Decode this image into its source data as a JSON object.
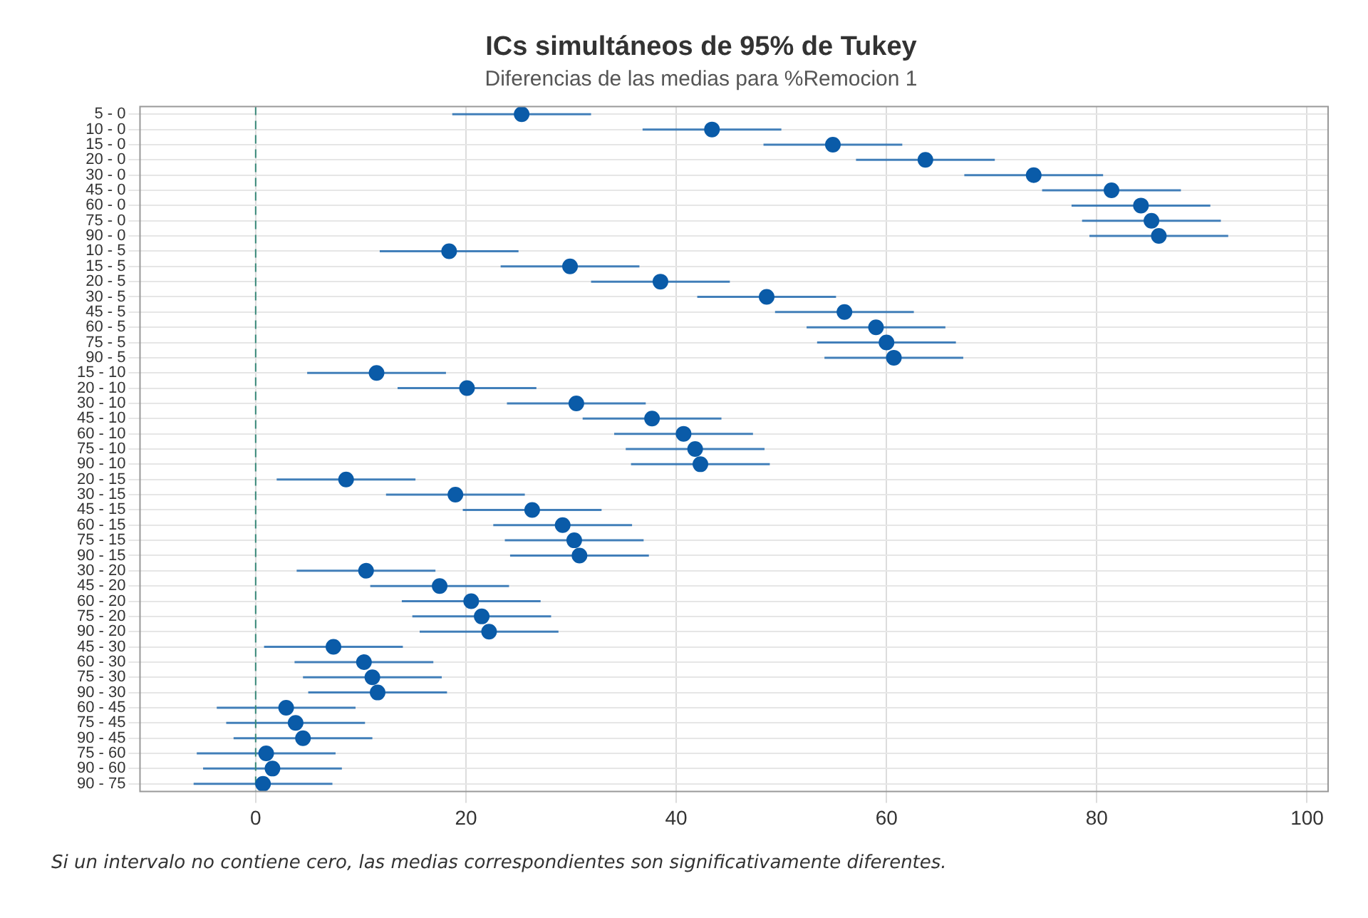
{
  "chart_data": {
    "type": "scatter",
    "title": "ICs simultáneos de 95% de Tukey",
    "subtitle": "Diferencias de las medias para %Remocion 1",
    "categories": [
      "5 - 0",
      "10 - 0",
      "15 - 0",
      "20 - 0",
      "30 - 0",
      "45 - 0",
      "60 - 0",
      "75 - 0",
      "90 - 0",
      "10 - 5",
      "15 - 5",
      "20 - 5",
      "30 - 5",
      "45 - 5",
      "60 - 5",
      "75 - 5",
      "90 - 5",
      "15 - 10",
      "20 - 10",
      "30 - 10",
      "45 - 10",
      "60 - 10",
      "75 - 10",
      "90 - 10",
      "20 - 15",
      "30 - 15",
      "45 - 15",
      "60 - 15",
      "75 - 15",
      "90 - 15",
      "30 - 20",
      "45 - 20",
      "60 - 20",
      "75 - 20",
      "90 - 20",
      "45 - 30",
      "60 - 30",
      "75 - 30",
      "90 - 30",
      "60 - 45",
      "75 - 45",
      "90 - 45",
      "75 - 60",
      "90 - 60",
      "90 - 75"
    ],
    "orientation": "horizontal",
    "series": [
      {
        "color": "#0a5ba8",
        "values": [
          25.3,
          43.4,
          54.9,
          63.7,
          74.0,
          81.4,
          84.2,
          85.2,
          85.9,
          18.4,
          29.9,
          38.5,
          48.6,
          56.0,
          59.0,
          60.0,
          60.7,
          11.5,
          20.1,
          30.5,
          37.7,
          40.7,
          41.8,
          42.3,
          8.6,
          19.0,
          26.3,
          29.2,
          30.3,
          30.8,
          10.5,
          17.5,
          20.5,
          21.5,
          22.2,
          7.4,
          10.3,
          11.1,
          11.6,
          2.9,
          3.8,
          4.5,
          1.0,
          1.6,
          0.7
        ],
        "errors": [
          6.6,
          6.6,
          6.6,
          6.6,
          6.6,
          6.6,
          6.6,
          6.6,
          6.6,
          6.6,
          6.6,
          6.6,
          6.6,
          6.6,
          6.6,
          6.6,
          6.6,
          6.6,
          6.6,
          6.6,
          6.6,
          6.6,
          6.6,
          6.6,
          6.6,
          6.6,
          6.6,
          6.6,
          6.6,
          6.6,
          6.6,
          6.6,
          6.6,
          6.6,
          6.6,
          6.6,
          6.6,
          6.6,
          6.6,
          6.6,
          6.6,
          6.6,
          6.6,
          6.6,
          6.6
        ]
      }
    ],
    "xlim": [
      -11,
      102
    ],
    "xticks": [
      0,
      20,
      40,
      60,
      80,
      100
    ],
    "ref_lines": [
      {
        "axis": "x",
        "value": 0,
        "color": "#3a8a7a",
        "line_style": "dashed"
      }
    ],
    "grid": true,
    "marker": "circle",
    "legend": false,
    "annotations": [
      "Si un intervalo no contiene cero, las medias correspondientes son significativamente diferentes."
    ]
  }
}
